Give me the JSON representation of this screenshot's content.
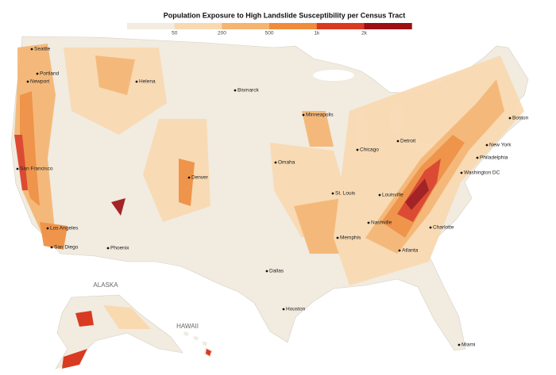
{
  "header": {
    "title": "Population Exposure to High Landslide Susceptibility per Census Tract"
  },
  "legend": {
    "labels": [
      "50",
      "200",
      "500",
      "1k",
      "2k"
    ],
    "colors": [
      "#f2ece1",
      "#f9d9b0",
      "#f5b46f",
      "#ef8b3b",
      "#d93a22",
      "#9b0f12"
    ]
  },
  "cities": [
    "Seattle",
    "Portland",
    "Newport",
    "Helena",
    "Bismarck",
    "Minneapolis",
    "Boston",
    "Detroit",
    "New York",
    "Chicago",
    "Omaha",
    "Philadelphia",
    "San Francisco",
    "Denver",
    "Washington DC",
    "St. Louis",
    "Louisville",
    "Nashville",
    "Charlotte",
    "Los Angeles",
    "Memphis",
    "San Diego",
    "Phoenix",
    "Atlanta",
    "Dallas",
    "Houston",
    "Miami"
  ],
  "regions": [
    "ALASKA",
    "HAWAII"
  ]
}
